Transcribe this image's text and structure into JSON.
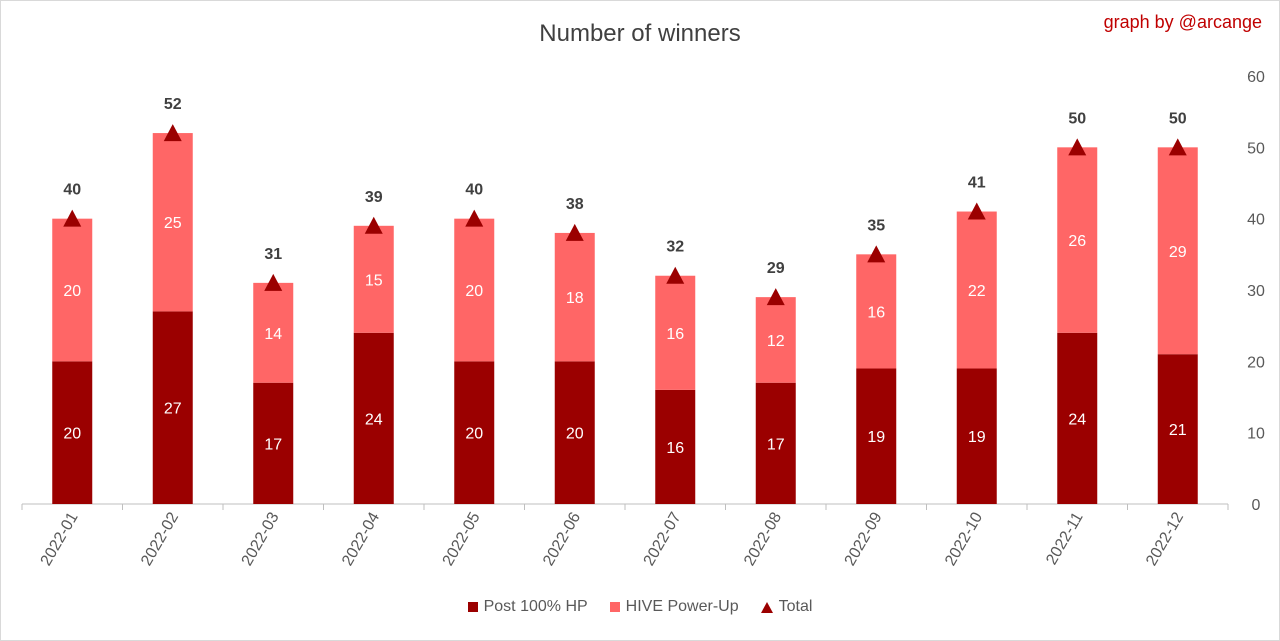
{
  "chart_data": {
    "type": "bar",
    "stacked": true,
    "title": "Number of winners",
    "credit": "graph by @arcange",
    "categories": [
      "2022-01",
      "2022-02",
      "2022-03",
      "2022-04",
      "2022-05",
      "2022-06",
      "2022-07",
      "2022-08",
      "2022-09",
      "2022-10",
      "2022-11",
      "2022-12"
    ],
    "series": [
      {
        "name": "Post 100% HP",
        "color": "#9b0000",
        "values": [
          20,
          27,
          17,
          24,
          20,
          20,
          16,
          17,
          19,
          19,
          24,
          21
        ]
      },
      {
        "name": "HIVE Power-Up",
        "color": "#ff6666",
        "values": [
          20,
          25,
          14,
          15,
          20,
          18,
          16,
          12,
          16,
          22,
          26,
          29
        ]
      }
    ],
    "total": {
      "name": "Total",
      "color": "#9b0000",
      "marker": "triangle",
      "values": [
        40,
        52,
        31,
        39,
        40,
        38,
        32,
        29,
        35,
        41,
        50,
        50
      ]
    },
    "yaxis": {
      "side": "right",
      "ylim": [
        0,
        60
      ],
      "ticks": [
        0,
        10,
        20,
        30,
        40,
        50,
        60
      ]
    },
    "grid": false,
    "legend": "bottom"
  }
}
